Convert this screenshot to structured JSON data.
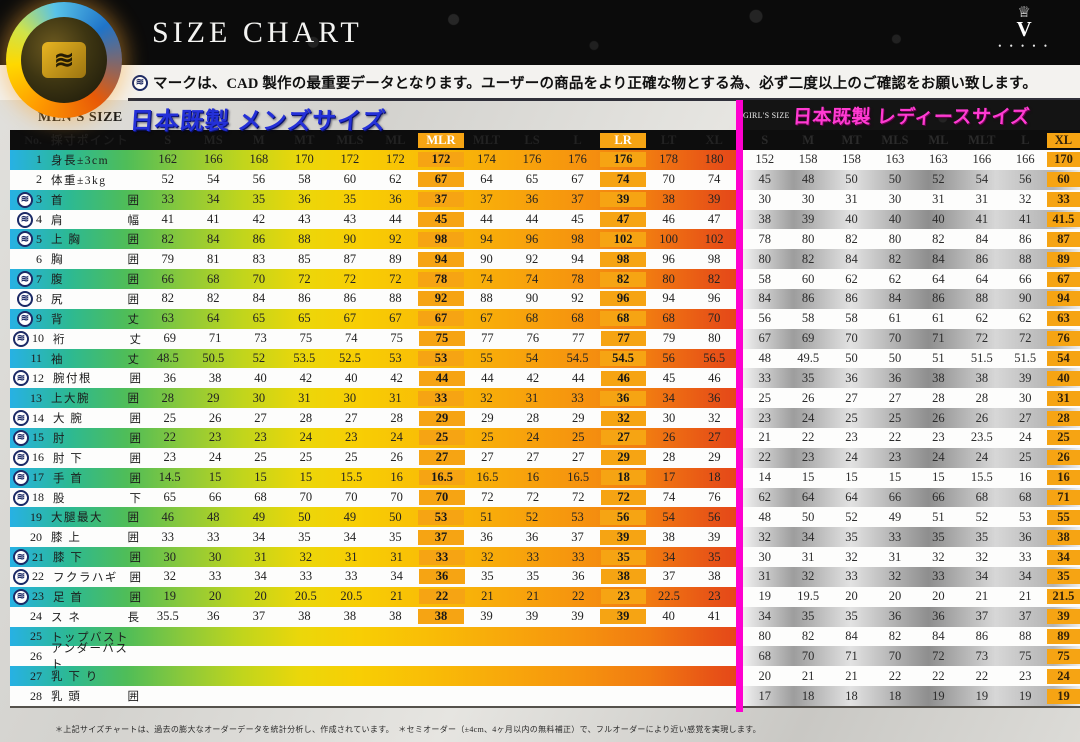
{
  "banner": {
    "title": "SIZE CHART",
    "crown_icon": "♕",
    "brand_letter": "V",
    "brand_dots": "• • • • •",
    "logo_glyph": "≋"
  },
  "notice": {
    "icon_glyph": "≋",
    "text": "マークは、CAD 製作の最重要データとなります。ユーザーの商品をより正確な物とする為、必ず二度以上のご確認をお願い致します。"
  },
  "footnote": "＊上記サイズチャートは、過去の膨大なオーダーデータを統計分析し、作成されています。　＊セミオーダー（±4cm、4ヶ月以内の無料補正）で、フルオーダーにより近い感覚を実現します。",
  "mens": {
    "size_label": "MEN'S SIZE",
    "title": "日本既製 メンズサイズ",
    "header": {
      "no": "No.",
      "point": "採寸ポイント"
    },
    "columns": [
      "S",
      "MS",
      "M",
      "MT",
      "MLS",
      "ML",
      "MLR",
      "MLT",
      "LS",
      "L",
      "LR",
      "LT",
      "XL"
    ],
    "highlight_columns": [
      6,
      10
    ],
    "rows": [
      {
        "no": "1",
        "z": false,
        "label": "身長±3cm",
        "unit": "",
        "values": [
          "162",
          "166",
          "168",
          "170",
          "172",
          "172",
          "172",
          "174",
          "176",
          "176",
          "176",
          "178",
          "180"
        ]
      },
      {
        "no": "2",
        "z": false,
        "label": "体重±3kg",
        "unit": "",
        "values": [
          "52",
          "54",
          "56",
          "58",
          "60",
          "62",
          "67",
          "64",
          "65",
          "67",
          "74",
          "70",
          "74"
        ]
      },
      {
        "no": "3",
        "z": true,
        "label": "首",
        "unit": "囲",
        "values": [
          "33",
          "34",
          "35",
          "36",
          "35",
          "36",
          "37",
          "37",
          "36",
          "37",
          "39",
          "38",
          "39"
        ]
      },
      {
        "no": "4",
        "z": true,
        "label": "肩",
        "unit": "幅",
        "values": [
          "41",
          "41",
          "42",
          "43",
          "43",
          "44",
          "45",
          "44",
          "44",
          "45",
          "47",
          "46",
          "47"
        ]
      },
      {
        "no": "5",
        "z": true,
        "label": "上 胸",
        "unit": "囲",
        "values": [
          "82",
          "84",
          "86",
          "88",
          "90",
          "92",
          "98",
          "94",
          "96",
          "98",
          "102",
          "100",
          "102"
        ]
      },
      {
        "no": "6",
        "z": false,
        "label": "胸",
        "unit": "囲",
        "values": [
          "79",
          "81",
          "83",
          "85",
          "87",
          "89",
          "94",
          "90",
          "92",
          "94",
          "98",
          "96",
          "98"
        ]
      },
      {
        "no": "7",
        "z": true,
        "label": "腹",
        "unit": "囲",
        "values": [
          "66",
          "68",
          "70",
          "72",
          "72",
          "72",
          "78",
          "74",
          "74",
          "78",
          "82",
          "80",
          "82"
        ]
      },
      {
        "no": "8",
        "z": true,
        "label": "尻",
        "unit": "囲",
        "values": [
          "82",
          "82",
          "84",
          "86",
          "86",
          "88",
          "92",
          "88",
          "90",
          "92",
          "96",
          "94",
          "96"
        ]
      },
      {
        "no": "9",
        "z": true,
        "label": "背",
        "unit": "丈",
        "values": [
          "63",
          "64",
          "65",
          "65",
          "67",
          "67",
          "67",
          "67",
          "68",
          "68",
          "68",
          "68",
          "70"
        ]
      },
      {
        "no": "10",
        "z": true,
        "label": "裄",
        "unit": "丈",
        "values": [
          "69",
          "71",
          "73",
          "75",
          "74",
          "75",
          "75",
          "77",
          "76",
          "77",
          "77",
          "79",
          "80"
        ]
      },
      {
        "no": "11",
        "z": false,
        "label": "袖",
        "unit": "丈",
        "values": [
          "48.5",
          "50.5",
          "52",
          "53.5",
          "52.5",
          "53",
          "53",
          "55",
          "54",
          "54.5",
          "54.5",
          "56",
          "56.5"
        ]
      },
      {
        "no": "12",
        "z": true,
        "label": "腕付根",
        "unit": "囲",
        "values": [
          "36",
          "38",
          "40",
          "42",
          "40",
          "42",
          "44",
          "44",
          "42",
          "44",
          "46",
          "45",
          "46"
        ]
      },
      {
        "no": "13",
        "z": false,
        "label": "上大腕",
        "unit": "囲",
        "values": [
          "28",
          "29",
          "30",
          "31",
          "30",
          "31",
          "33",
          "32",
          "31",
          "33",
          "36",
          "34",
          "36"
        ]
      },
      {
        "no": "14",
        "z": true,
        "label": "大 腕",
        "unit": "囲",
        "values": [
          "25",
          "26",
          "27",
          "28",
          "27",
          "28",
          "29",
          "29",
          "28",
          "29",
          "32",
          "30",
          "32"
        ]
      },
      {
        "no": "15",
        "z": true,
        "label": "肘",
        "unit": "囲",
        "values": [
          "22",
          "23",
          "23",
          "24",
          "23",
          "24",
          "25",
          "25",
          "24",
          "25",
          "27",
          "26",
          "27"
        ]
      },
      {
        "no": "16",
        "z": true,
        "label": "肘 下",
        "unit": "囲",
        "values": [
          "23",
          "24",
          "25",
          "25",
          "25",
          "26",
          "27",
          "27",
          "27",
          "27",
          "29",
          "28",
          "29"
        ]
      },
      {
        "no": "17",
        "z": true,
        "label": "手 首",
        "unit": "囲",
        "values": [
          "14.5",
          "15",
          "15",
          "15",
          "15.5",
          "16",
          "16.5",
          "16.5",
          "16",
          "16.5",
          "18",
          "17",
          "18"
        ]
      },
      {
        "no": "18",
        "z": true,
        "label": "股",
        "unit": "下",
        "values": [
          "65",
          "66",
          "68",
          "70",
          "70",
          "70",
          "70",
          "72",
          "72",
          "72",
          "72",
          "74",
          "76"
        ]
      },
      {
        "no": "19",
        "z": false,
        "label": "大腿最大",
        "unit": "囲",
        "values": [
          "46",
          "48",
          "49",
          "50",
          "49",
          "50",
          "53",
          "51",
          "52",
          "53",
          "56",
          "54",
          "56"
        ]
      },
      {
        "no": "20",
        "z": false,
        "label": "膝 上",
        "unit": "囲",
        "values": [
          "33",
          "33",
          "34",
          "35",
          "34",
          "35",
          "37",
          "36",
          "36",
          "37",
          "39",
          "38",
          "39"
        ]
      },
      {
        "no": "21",
        "z": true,
        "label": "膝 下",
        "unit": "囲",
        "values": [
          "30",
          "30",
          "31",
          "32",
          "31",
          "31",
          "33",
          "32",
          "33",
          "33",
          "35",
          "34",
          "35"
        ]
      },
      {
        "no": "22",
        "z": true,
        "label": "フクラハギ",
        "unit": "囲",
        "values": [
          "32",
          "33",
          "34",
          "33",
          "33",
          "34",
          "36",
          "35",
          "35",
          "36",
          "38",
          "37",
          "38"
        ]
      },
      {
        "no": "23",
        "z": true,
        "label": "足 首",
        "unit": "囲",
        "values": [
          "19",
          "20",
          "20",
          "20.5",
          "20.5",
          "21",
          "22",
          "21",
          "21",
          "22",
          "23",
          "22.5",
          "23"
        ]
      },
      {
        "no": "24",
        "z": false,
        "label": "ス ネ",
        "unit": "長",
        "values": [
          "35.5",
          "36",
          "37",
          "38",
          "38",
          "38",
          "38",
          "39",
          "39",
          "39",
          "39",
          "40",
          "41"
        ]
      },
      {
        "no": "25",
        "z": false,
        "label": "トップバスト",
        "unit": "",
        "values": [
          "",
          "",
          "",
          "",
          "",
          "",
          "",
          "",
          "",
          "",
          "",
          "",
          ""
        ]
      },
      {
        "no": "26",
        "z": false,
        "label": "アンダーバスト",
        "unit": "",
        "values": [
          "",
          "",
          "",
          "",
          "",
          "",
          "",
          "",
          "",
          "",
          "",
          "",
          ""
        ]
      },
      {
        "no": "27",
        "z": false,
        "label": "乳 下 り",
        "unit": "",
        "values": [
          "",
          "",
          "",
          "",
          "",
          "",
          "",
          "",
          "",
          "",
          "",
          "",
          ""
        ]
      },
      {
        "no": "28",
        "z": false,
        "label": "乳 頭",
        "unit": "囲",
        "values": [
          "",
          "",
          "",
          "",
          "",
          "",
          "",
          "",
          "",
          "",
          "",
          "",
          ""
        ]
      }
    ]
  },
  "girls": {
    "size_label": "GIRL'S SIZE",
    "title": "日本既製 レディースサイズ",
    "columns": [
      "S",
      "M",
      "MT",
      "MLS",
      "ML",
      "MLT",
      "L",
      "XL"
    ],
    "highlight_columns": [
      7
    ],
    "rows": [
      [
        "152",
        "158",
        "158",
        "163",
        "163",
        "166",
        "166",
        "170"
      ],
      [
        "45",
        "48",
        "50",
        "50",
        "52",
        "54",
        "56",
        "60"
      ],
      [
        "30",
        "30",
        "31",
        "30",
        "31",
        "31",
        "32",
        "33"
      ],
      [
        "38",
        "39",
        "40",
        "40",
        "40",
        "41",
        "41",
        "41.5"
      ],
      [
        "78",
        "80",
        "82",
        "80",
        "82",
        "84",
        "86",
        "87"
      ],
      [
        "80",
        "82",
        "84",
        "82",
        "84",
        "86",
        "88",
        "89"
      ],
      [
        "58",
        "60",
        "62",
        "62",
        "64",
        "64",
        "66",
        "67"
      ],
      [
        "84",
        "86",
        "86",
        "84",
        "86",
        "88",
        "90",
        "94"
      ],
      [
        "56",
        "58",
        "58",
        "61",
        "61",
        "62",
        "62",
        "63"
      ],
      [
        "67",
        "69",
        "70",
        "70",
        "71",
        "72",
        "72",
        "76"
      ],
      [
        "48",
        "49.5",
        "50",
        "50",
        "51",
        "51.5",
        "51.5",
        "54"
      ],
      [
        "33",
        "35",
        "36",
        "36",
        "38",
        "38",
        "39",
        "40"
      ],
      [
        "25",
        "26",
        "27",
        "27",
        "28",
        "28",
        "30",
        "31"
      ],
      [
        "23",
        "24",
        "25",
        "25",
        "26",
        "26",
        "27",
        "28"
      ],
      [
        "21",
        "22",
        "23",
        "22",
        "23",
        "23.5",
        "24",
        "25"
      ],
      [
        "22",
        "23",
        "24",
        "23",
        "24",
        "24",
        "25",
        "26"
      ],
      [
        "14",
        "15",
        "15",
        "15",
        "15",
        "15.5",
        "16",
        "16"
      ],
      [
        "62",
        "64",
        "64",
        "66",
        "66",
        "68",
        "68",
        "71"
      ],
      [
        "48",
        "50",
        "52",
        "49",
        "51",
        "52",
        "53",
        "55"
      ],
      [
        "32",
        "34",
        "35",
        "33",
        "35",
        "35",
        "36",
        "38"
      ],
      [
        "30",
        "31",
        "32",
        "31",
        "32",
        "32",
        "33",
        "34"
      ],
      [
        "31",
        "32",
        "33",
        "32",
        "33",
        "34",
        "34",
        "35"
      ],
      [
        "19",
        "19.5",
        "20",
        "20",
        "20",
        "21",
        "21",
        "21.5"
      ],
      [
        "34",
        "35",
        "35",
        "36",
        "36",
        "37",
        "37",
        "39"
      ],
      [
        "80",
        "82",
        "84",
        "82",
        "84",
        "86",
        "88",
        "89"
      ],
      [
        "68",
        "70",
        "71",
        "70",
        "72",
        "73",
        "75",
        "75"
      ],
      [
        "20",
        "21",
        "21",
        "22",
        "22",
        "22",
        "23",
        "24"
      ],
      [
        "17",
        "18",
        "18",
        "18",
        "19",
        "19",
        "19",
        "19"
      ]
    ]
  },
  "colors": {
    "accent_orange_band": "#f6a413",
    "mens_title_blue": "#2430d8",
    "girls_title_pink": "#ff3bd2",
    "divider_magenta": "#ff00cf",
    "header_black": "#0d0d0d",
    "gradient_start_cyan": "#27b1e4",
    "gradient_end_red": "#e54719"
  }
}
